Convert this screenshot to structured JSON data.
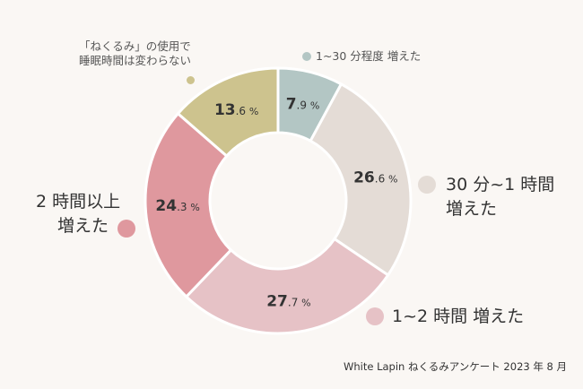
{
  "chart_data": {
    "type": "pie",
    "style": "donut",
    "slices": [
      {
        "label": "1~30 分程度 増えた",
        "value": 7.9,
        "display_big": "7",
        "display_small": ".9",
        "display_unit": "%",
        "color": "#b3c6c4"
      },
      {
        "label": "30 分~1 時間 増えた",
        "value": 26.6,
        "display_big": "26",
        "display_small": ".6",
        "display_unit": "%",
        "color": "#e4dcd6"
      },
      {
        "label": "1~2 時間 増えた",
        "value": 27.7,
        "display_big": "27",
        "display_small": ".7",
        "display_unit": "%",
        "color": "#e6c2c6"
      },
      {
        "label": "2 時間以上 増えた",
        "value": 24.3,
        "display_big": "24",
        "display_small": ".3",
        "display_unit": "%",
        "color": "#df989e"
      },
      {
        "label": "「ねくるみ」の使用で 睡眠時間は変わらない",
        "value": 13.6,
        "display_big": "13",
        "display_small": ".6",
        "display_unit": "%",
        "color": "#cdc38e"
      }
    ]
  },
  "legend": {
    "l1": {
      "text": "1~30 分程度 増えた"
    },
    "l2": {
      "line1": "30 分~1 時間",
      "line2": "増えた"
    },
    "l3": {
      "text": "1~2 時間 増えた"
    },
    "l4": {
      "line1": "2 時間以上",
      "line2": "増えた"
    },
    "l5": {
      "line1": "「ねくるみ」の使用で",
      "line2": "睡眠時間は変わらない"
    }
  },
  "source": "White Lapin ねくるみアンケート 2023 年 8 月"
}
